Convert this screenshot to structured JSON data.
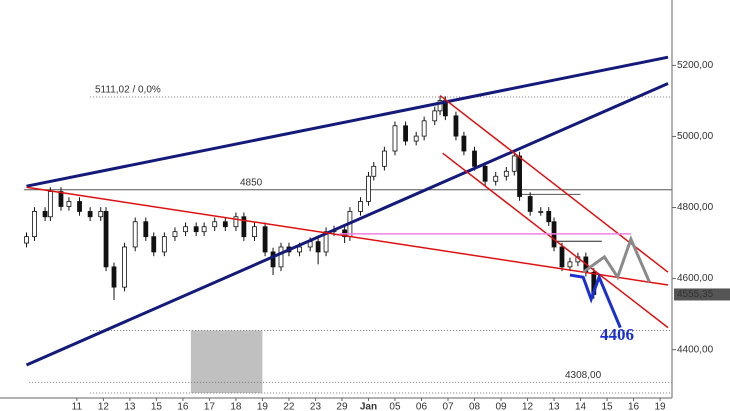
{
  "chart_data": {
    "type": "candlestick",
    "x": [
      -1.9,
      -1.6,
      -1.2,
      -1.0,
      -0.6,
      -0.3,
      0.1,
      0.5,
      0.9,
      1.1,
      1.4,
      1.8,
      2.2,
      2.6,
      2.9,
      3.3,
      3.7,
      4.1,
      4.5,
      4.8,
      5.2,
      5.6,
      6.0,
      6.3,
      6.7,
      7.1,
      7.4,
      7.7,
      8.0,
      8.4,
      8.8,
      9.1,
      9.4,
      9.7,
      10.1,
      10.3,
      10.7,
      11.0,
      11.2,
      11.6,
      12.0,
      12.4,
      12.8,
      13.1,
      13.5,
      13.7,
      13.9,
      14.3,
      14.6,
      15.0,
      15.4,
      15.8,
      16.2,
      16.5,
      16.7,
      17.1,
      17.5,
      17.8,
      18.0,
      18.3,
      18.6,
      18.9,
      19.2,
      19.5
    ],
    "open": [
      4700,
      4718,
      4789,
      4774,
      4845,
      4803,
      4817,
      4789,
      4774,
      4789,
      4633,
      4576,
      4689,
      4760,
      4718,
      4675,
      4718,
      4732,
      4746,
      4732,
      4746,
      4760,
      4746,
      4774,
      4718,
      4746,
      4675,
      4633,
      4689,
      4675,
      4689,
      4704,
      4675,
      4732,
      4737,
      4718,
      4789,
      4817,
      4888,
      4916,
      4959,
      5030,
      4987,
      5001,
      5044,
      5072,
      5101,
      5058,
      5001,
      4959,
      4916,
      4874,
      4888,
      4902,
      4945,
      4831,
      4789,
      4789,
      4760,
      4689,
      4633,
      4647,
      4661,
      4618
    ],
    "high": [
      4730,
      4801,
      4801,
      4857,
      4857,
      4829,
      4829,
      4801,
      4801,
      4801,
      4645,
      4701,
      4772,
      4772,
      4730,
      4730,
      4744,
      4758,
      4758,
      4758,
      4772,
      4772,
      4786,
      4786,
      4758,
      4758,
      4687,
      4701,
      4701,
      4701,
      4716,
      4716,
      4744,
      4749,
      4749,
      4801,
      4829,
      4900,
      4928,
      4971,
      5042,
      5042,
      5013,
      5056,
      5084,
      5113,
      5113,
      5070,
      5013,
      4971,
      4928,
      4900,
      4914,
      4957,
      4957,
      4843,
      4801,
      4801,
      4772,
      4701,
      4659,
      4673,
      4673,
      4630
    ],
    "low": [
      4688,
      4706,
      4762,
      4762,
      4791,
      4791,
      4777,
      4762,
      4762,
      4621,
      4540,
      4564,
      4677,
      4706,
      4663,
      4663,
      4706,
      4720,
      4720,
      4720,
      4734,
      4734,
      4734,
      4706,
      4706,
      4663,
      4610,
      4621,
      4663,
      4663,
      4677,
      4640,
      4663,
      4720,
      4700,
      4706,
      4777,
      4805,
      4876,
      4904,
      4947,
      4975,
      4975,
      4989,
      5032,
      5060,
      5046,
      4989,
      4947,
      4904,
      4862,
      4862,
      4876,
      4890,
      4819,
      4777,
      4777,
      4748,
      4677,
      4621,
      4621,
      4635,
      4606,
      4543
    ],
    "close": [
      4718,
      4789,
      4774,
      4845,
      4803,
      4817,
      4789,
      4774,
      4789,
      4633,
      4576,
      4689,
      4760,
      4718,
      4675,
      4718,
      4732,
      4746,
      4732,
      4746,
      4760,
      4746,
      4774,
      4718,
      4746,
      4675,
      4633,
      4689,
      4675,
      4689,
      4704,
      4675,
      4732,
      4737,
      4718,
      4789,
      4817,
      4888,
      4916,
      4959,
      5030,
      4987,
      5001,
      5044,
      5072,
      5101,
      5058,
      5001,
      4959,
      4916,
      4874,
      4888,
      4902,
      4945,
      4831,
      4789,
      4789,
      4760,
      4689,
      4633,
      4647,
      4661,
      4618,
      4555.35
    ],
    "last_price": {
      "value": 4555.35,
      "label": "4555,35"
    },
    "xlim": [
      -2.9,
      22.45
    ],
    "ylim": [
      4264,
      5384
    ],
    "xticks": [
      {
        "value": 0,
        "label": "11"
      },
      {
        "value": 1,
        "label": "12"
      },
      {
        "value": 2,
        "label": "13"
      },
      {
        "value": 3,
        "label": "15"
      },
      {
        "value": 4,
        "label": "16"
      },
      {
        "value": 5,
        "label": "17"
      },
      {
        "value": 6,
        "label": "18"
      },
      {
        "value": 7,
        "label": "19"
      },
      {
        "value": 8,
        "label": "22"
      },
      {
        "value": 9,
        "label": "23"
      },
      {
        "value": 10,
        "label": "29"
      },
      {
        "value": 11,
        "label": "Jan"
      },
      {
        "value": 12,
        "label": "05"
      },
      {
        "value": 13,
        "label": "06"
      },
      {
        "value": 14,
        "label": "07"
      },
      {
        "value": 15,
        "label": "08"
      },
      {
        "value": 16,
        "label": "09"
      },
      {
        "value": 17,
        "label": "12"
      },
      {
        "value": 18,
        "label": "13"
      },
      {
        "value": 19,
        "label": "14"
      },
      {
        "value": 20,
        "label": "15"
      },
      {
        "value": 21,
        "label": "16"
      },
      {
        "value": 22,
        "label": "19"
      }
    ],
    "yticks": [
      {
        "value": 4400,
        "label": "4400,00"
      },
      {
        "value": 4600,
        "label": "4600,00"
      },
      {
        "value": 4800,
        "label": "4800,00"
      },
      {
        "value": 5000,
        "label": "5000,00"
      },
      {
        "value": 5200,
        "label": "5200,00"
      }
    ],
    "trend_lines": [
      {
        "color": "#141a7a",
        "x": [
          -1.9,
          22.3
        ],
        "y": [
          4860,
          5223
        ]
      },
      {
        "color": "#141a7a",
        "x": [
          -1.9,
          22.3
        ],
        "y": [
          4357,
          5149
        ]
      },
      {
        "color": "#e01010",
        "x": [
          -1.9,
          22.3
        ],
        "y": [
          4857,
          4582
        ]
      },
      {
        "color": "#e01010",
        "x": [
          13.7,
          22.3
        ],
        "y": [
          5115,
          4618
        ]
      },
      {
        "color": "#e01010",
        "x": [
          13.8,
          22.3
        ],
        "y": [
          4953,
          4462
        ]
      },
      {
        "color": "#f080e0",
        "x": [
          9.9,
          20.9
        ],
        "y": [
          4726,
          4726
        ]
      }
    ],
    "hlines": [
      {
        "value": 5111.02,
        "label": "5111,02 / 0,0%",
        "x": [
          0.5,
          22.45
        ],
        "color": "#777",
        "dash": true
      },
      {
        "value": 4850,
        "x": [
          -2.0,
          22.45
        ],
        "color": "#555",
        "dash": false
      },
      {
        "value": 4308,
        "label": "4308,00",
        "x": [
          -1.8,
          22.45
        ],
        "color": "#777",
        "dash": true
      },
      {
        "value": 4454,
        "x": [
          0.5,
          22.45
        ],
        "color": "#777",
        "dash": true
      },
      {
        "value": 4278,
        "x": [
          0.5,
          22.45
        ],
        "color": "#777",
        "dash": true
      },
      {
        "value": 4837,
        "x": [
          16.7,
          19.0
        ],
        "color": "#555",
        "dash": false
      },
      {
        "value": 4705,
        "x": [
          18.0,
          19.8
        ],
        "color": "#222",
        "dash": false
      }
    ],
    "projections": [
      {
        "color": "#1a2fd0",
        "x": [
          18.6,
          19.1,
          19.4,
          19.7,
          20.5
        ],
        "y": [
          4610,
          4604,
          4542,
          4604,
          4462
        ]
      },
      {
        "color": "#8a8a8a",
        "x": [
          19.1,
          19.9,
          20.4,
          20.9,
          21.6
        ],
        "y": [
          4618,
          4661,
          4604,
          4711,
          4590
        ]
      }
    ],
    "shaded_region": {
      "x": [
        4.3,
        7.0
      ],
      "y": [
        4278,
        4454
      ],
      "color": "#c0c0c0"
    },
    "annotation": "4406"
  }
}
